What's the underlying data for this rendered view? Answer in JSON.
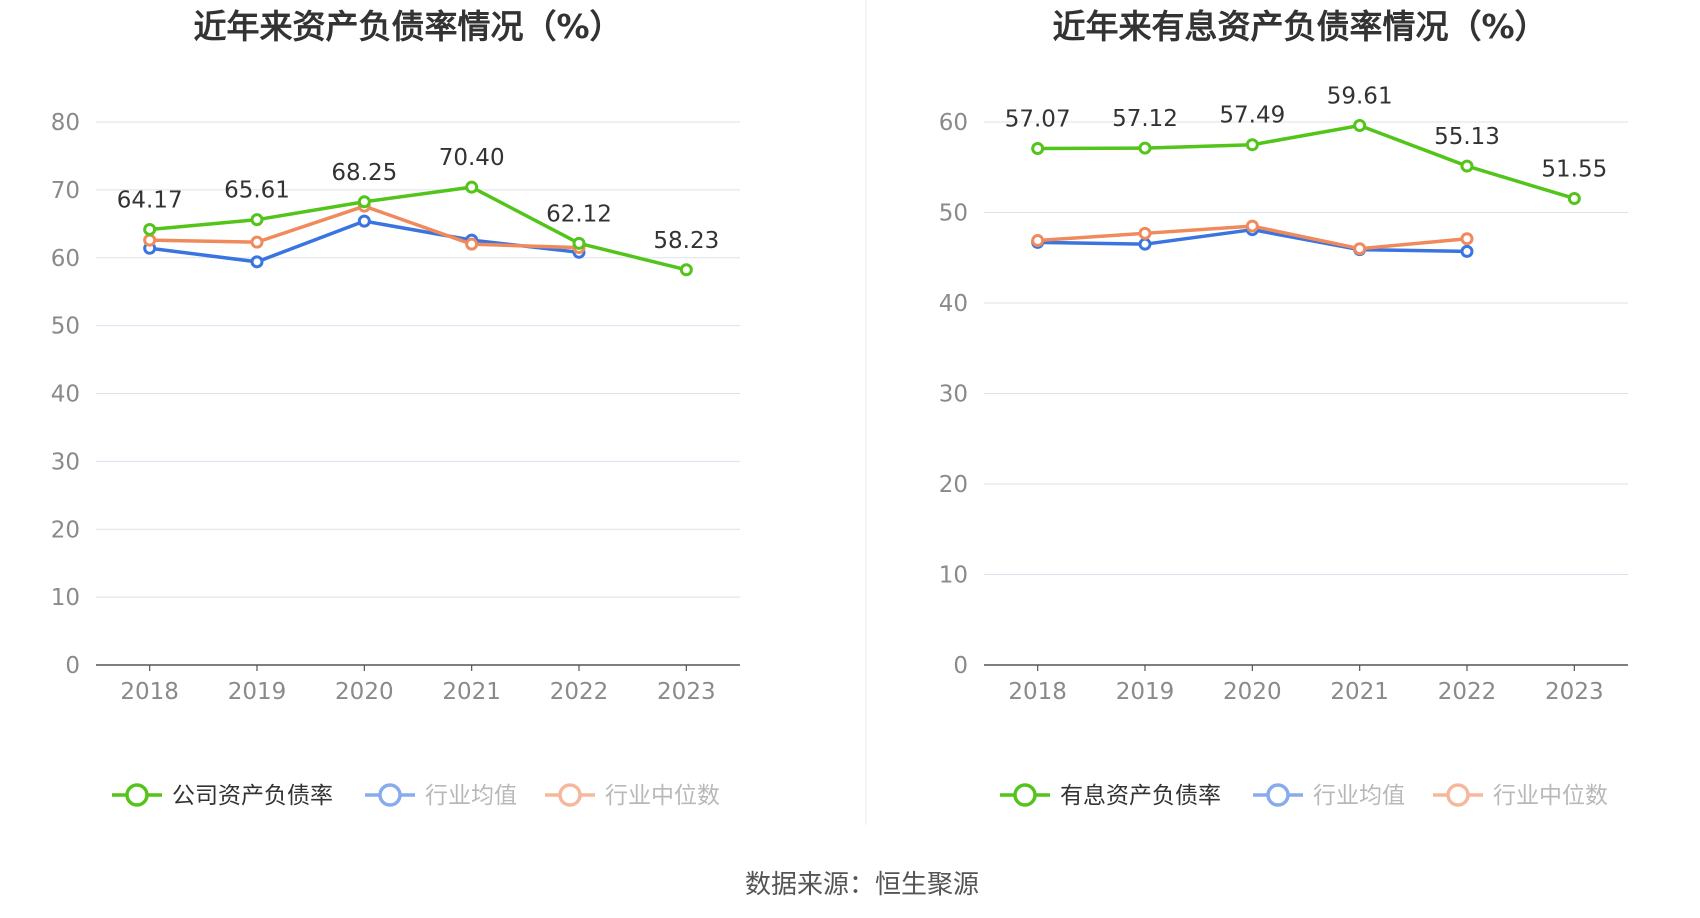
{
  "source_label": "数据来源：恒生聚源",
  "chart_data": [
    {
      "type": "line",
      "title": "近年来资产负债率情况（%）",
      "x": [
        "2018",
        "2019",
        "2020",
        "2021",
        "2022",
        "2023"
      ],
      "ylim": [
        0,
        80
      ],
      "yticks": [
        0,
        10,
        20,
        30,
        40,
        50,
        60,
        70,
        80
      ],
      "grid": true,
      "legend_position": "bottom",
      "series": [
        {
          "name": "公司资产负债率",
          "color": "#52c41a",
          "values": [
            64.17,
            65.61,
            68.25,
            70.4,
            62.12,
            58.23
          ],
          "labels": true
        },
        {
          "name": "行业均值",
          "color": "#3a74e0",
          "values": [
            61.4,
            59.4,
            65.4,
            62.6,
            60.8,
            null
          ],
          "labels": false
        },
        {
          "name": "行业中位数",
          "color": "#f08a5d",
          "values": [
            62.6,
            62.3,
            67.6,
            62.0,
            61.5,
            null
          ],
          "labels": false
        }
      ]
    },
    {
      "type": "line",
      "title": "近年来有息资产负债率情况（%）",
      "x": [
        "2018",
        "2019",
        "2020",
        "2021",
        "2022",
        "2023"
      ],
      "ylim": [
        0,
        60
      ],
      "yticks": [
        0,
        10,
        20,
        30,
        40,
        50,
        60
      ],
      "grid": true,
      "legend_position": "bottom",
      "series": [
        {
          "name": "有息资产负债率",
          "color": "#52c41a",
          "values": [
            57.07,
            57.12,
            57.49,
            59.61,
            55.13,
            51.55
          ],
          "labels": true
        },
        {
          "name": "行业均值",
          "color": "#3a74e0",
          "values": [
            46.7,
            46.5,
            48.1,
            45.9,
            45.7,
            null
          ],
          "labels": false
        },
        {
          "name": "行业中位数",
          "color": "#f08a5d",
          "values": [
            46.9,
            47.7,
            48.5,
            46.0,
            47.1,
            null
          ],
          "labels": false
        }
      ]
    }
  ]
}
